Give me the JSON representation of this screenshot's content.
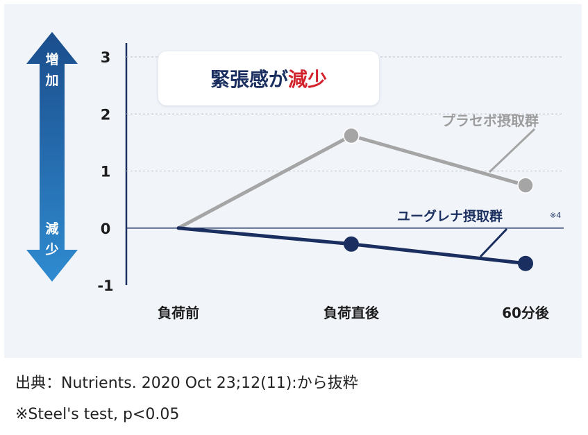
{
  "arrow": {
    "top_label": [
      "増",
      "加"
    ],
    "bottom_label": [
      "減",
      "少"
    ],
    "top_color": "#1b4d8c",
    "bottom_color": "#2f8bd0"
  },
  "title": {
    "text_main": "緊張感が",
    "text_accent": "減少",
    "main_color": "#1a2f5f",
    "accent_color": "#d2222b"
  },
  "chart_data": {
    "type": "line",
    "categories": [
      "負荷前",
      "負荷直後",
      "60分後"
    ],
    "y_ticks": [
      "3",
      "2",
      "1",
      "0",
      "-1"
    ],
    "ylim": [
      -1,
      3
    ],
    "grid": true,
    "series": [
      {
        "name": "プラセボ摂取群",
        "values": [
          0,
          1.62,
          0.75
        ],
        "color": "#a5a5a5"
      },
      {
        "name": "ユーグレナ摂取群",
        "values": [
          0,
          -0.28,
          -0.62
        ],
        "color": "#1a2f5f",
        "note": "※4"
      }
    ]
  },
  "caption": {
    "source": "出典：Nutrients. 2020 Oct 23;12(11):から抜粋",
    "test_note": "※Steel's test, p<0.05"
  }
}
